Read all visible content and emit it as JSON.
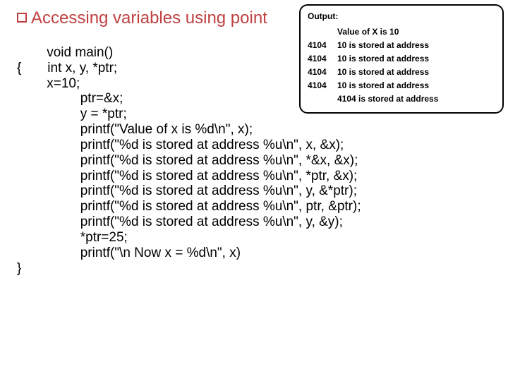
{
  "title": "Accessing variables using point",
  "code_lines": [
    "        void main()",
    "{       int x, y, *ptr;",
    "        x=10;",
    "                 ptr=&x;",
    "                 y = *ptr;",
    "                 printf(\"Value of x is %d\\n\", x);",
    "                 printf(\"%d is stored at address %u\\n\", x, &x);",
    "                 printf(\"%d is stored at address %u\\n\", *&x, &x);",
    "                 printf(\"%d is stored at address %u\\n\", *ptr, &x);",
    "                 printf(\"%d is stored at address %u\\n\", y, &*ptr);",
    "                 printf(\"%d is stored at address %u\\n\", ptr, &ptr);",
    "                 printf(\"%d is stored at address %u\\n\", y, &y);",
    "                 *ptr=25;",
    "                 printf(\"\\n Now x = %d\\n\", x)",
    "}"
  ],
  "output": {
    "title": "Output:",
    "lines": [
      {
        "left": "",
        "right": "Value of X is 10"
      },
      {
        "left": "4104",
        "right": "10 is stored at address"
      },
      {
        "left": "4104",
        "right": "10 is stored at address"
      },
      {
        "left": "4104",
        "right": "10 is stored at address"
      },
      {
        "left": "4104",
        "right": "10 is stored at address"
      },
      {
        "left": "",
        "right": "4104 is stored at address"
      }
    ]
  },
  "colors": {
    "title": "#c04040",
    "text": "#000000",
    "panel_border": "#000000",
    "panel_bg": "#ffffff"
  }
}
